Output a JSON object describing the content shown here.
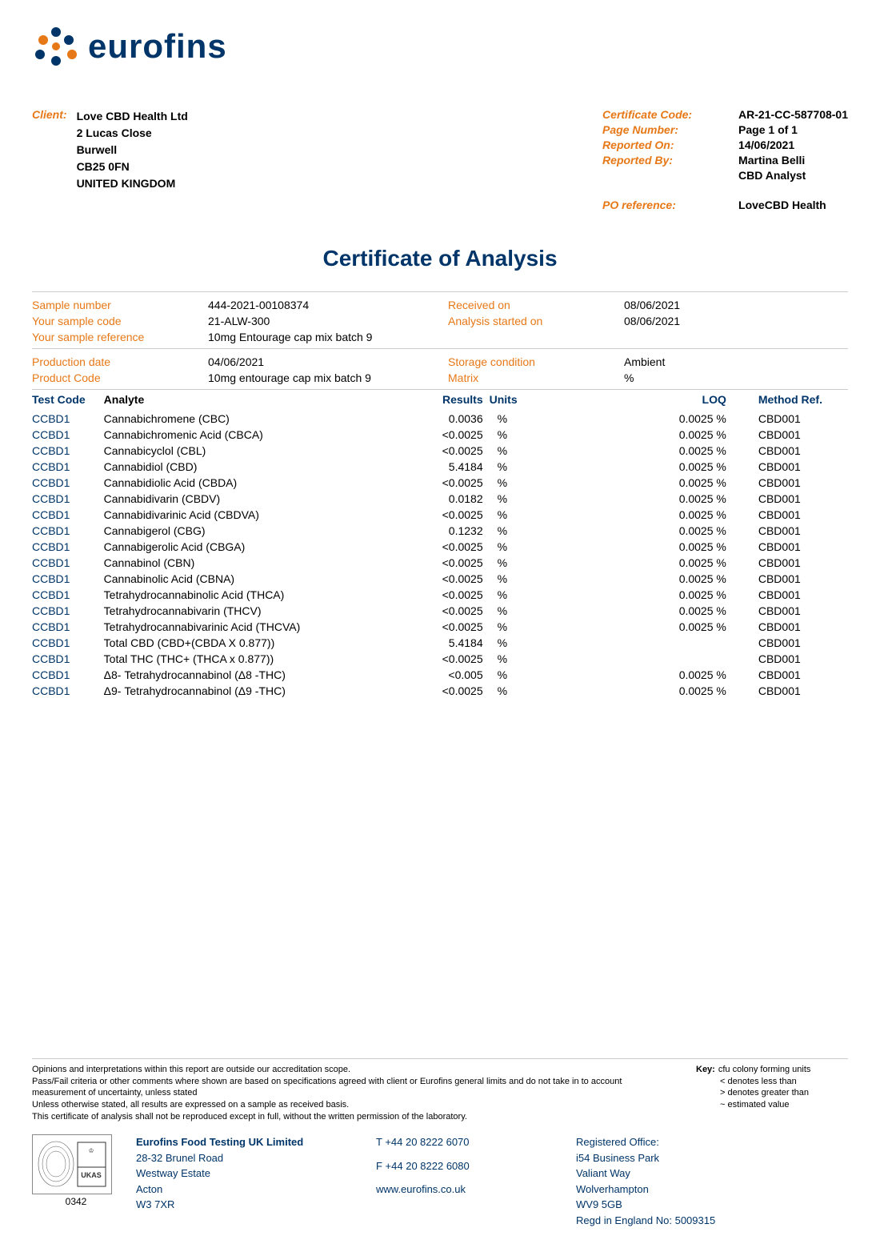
{
  "logo": {
    "text": "eurofins"
  },
  "client": {
    "label": "Client:",
    "lines": [
      "Love CBD Health Ltd",
      "2 Lucas Close",
      "Burwell",
      "CB25 0FN",
      "UNITED KINGDOM"
    ]
  },
  "cert_meta": [
    {
      "label": "Certificate Code:",
      "value": "AR-21-CC-587708-01"
    },
    {
      "label": "Page Number:",
      "value": "Page 1 of 1"
    },
    {
      "label": "Reported On:",
      "value": "14/06/2021"
    },
    {
      "label": "Reported By:",
      "value": "Martina Belli"
    },
    {
      "label": "",
      "value": "CBD Analyst"
    }
  ],
  "po_ref": {
    "label": "PO reference:",
    "value": "LoveCBD Health"
  },
  "title": "Certificate of Analysis",
  "sample_block1": {
    "left": [
      {
        "label": "Sample number",
        "value": "444-2021-00108374"
      },
      {
        "label": "Your sample code",
        "value": "21-ALW-300"
      },
      {
        "label": "Your sample reference",
        "value": "10mg Entourage cap mix batch 9"
      }
    ],
    "right": [
      {
        "label": "Received on",
        "value": "08/06/2021"
      },
      {
        "label": "Analysis started on",
        "value": "08/06/2021"
      }
    ]
  },
  "sample_block2": {
    "left": [
      {
        "label": "Production date",
        "value": "04/06/2021"
      },
      {
        "label": "Product Code",
        "value": "10mg entourage cap mix batch 9"
      }
    ],
    "right": [
      {
        "label": "Storage condition",
        "value": "Ambient"
      },
      {
        "label": "Matrix",
        "value": "%"
      }
    ]
  },
  "table": {
    "headers": {
      "code": "Test Code",
      "analyte": "Analyte",
      "results": "Results",
      "units": "Units",
      "loq": "LOQ",
      "method": "Method Ref."
    },
    "rows": [
      {
        "code": "CCBD1",
        "analyte": "Cannabichromene (CBC)",
        "results": "0.0036",
        "units": "%",
        "loq": "0.0025 %",
        "method": "CBD001"
      },
      {
        "code": "CCBD1",
        "analyte": "Cannabichromenic Acid (CBCA)",
        "results": "<0.0025",
        "units": "%",
        "loq": "0.0025 %",
        "method": "CBD001"
      },
      {
        "code": "CCBD1",
        "analyte": "Cannabicyclol (CBL)",
        "results": "<0.0025",
        "units": "%",
        "loq": "0.0025 %",
        "method": "CBD001"
      },
      {
        "code": "CCBD1",
        "analyte": "Cannabidiol (CBD)",
        "results": "5.4184",
        "units": "%",
        "loq": "0.0025 %",
        "method": "CBD001"
      },
      {
        "code": "CCBD1",
        "analyte": "Cannabidiolic Acid (CBDA)",
        "results": "<0.0025",
        "units": "%",
        "loq": "0.0025 %",
        "method": "CBD001"
      },
      {
        "code": "CCBD1",
        "analyte": "Cannabidivarin (CBDV)",
        "results": "0.0182",
        "units": "%",
        "loq": "0.0025 %",
        "method": "CBD001"
      },
      {
        "code": "CCBD1",
        "analyte": "Cannabidivarinic Acid (CBDVA)",
        "results": "<0.0025",
        "units": "%",
        "loq": "0.0025 %",
        "method": "CBD001"
      },
      {
        "code": "CCBD1",
        "analyte": "Cannabigerol (CBG)",
        "results": "0.1232",
        "units": "%",
        "loq": "0.0025 %",
        "method": "CBD001"
      },
      {
        "code": "CCBD1",
        "analyte": "Cannabigerolic Acid (CBGA)",
        "results": "<0.0025",
        "units": "%",
        "loq": "0.0025 %",
        "method": "CBD001"
      },
      {
        "code": "CCBD1",
        "analyte": "Cannabinol (CBN)",
        "results": "<0.0025",
        "units": "%",
        "loq": "0.0025 %",
        "method": "CBD001"
      },
      {
        "code": "CCBD1",
        "analyte": "Cannabinolic Acid (CBNA)",
        "results": "<0.0025",
        "units": "%",
        "loq": "0.0025 %",
        "method": "CBD001"
      },
      {
        "code": "CCBD1",
        "analyte": "Tetrahydrocannabinolic Acid (THCA)",
        "results": "<0.0025",
        "units": "%",
        "loq": "0.0025 %",
        "method": "CBD001"
      },
      {
        "code": "CCBD1",
        "analyte": "Tetrahydrocannabivarin (THCV)",
        "results": "<0.0025",
        "units": "%",
        "loq": "0.0025 %",
        "method": "CBD001"
      },
      {
        "code": "CCBD1",
        "analyte": "Tetrahydrocannabivarinic Acid (THCVA)",
        "results": "<0.0025",
        "units": "%",
        "loq": "0.0025 %",
        "method": "CBD001"
      },
      {
        "code": "CCBD1",
        "analyte": "Total CBD (CBD+(CBDA X 0.877))",
        "results": "5.4184",
        "units": "%",
        "loq": "",
        "method": "CBD001"
      },
      {
        "code": "CCBD1",
        "analyte": "Total THC (THC+ (THCA x 0.877))",
        "results": "<0.0025",
        "units": "%",
        "loq": "",
        "method": "CBD001"
      },
      {
        "code": "CCBD1",
        "analyte": "Δ8- Tetrahydrocannabinol (Δ8 -THC)",
        "results": "<0.005",
        "units": "%",
        "loq": "0.0025 %",
        "method": "CBD001"
      },
      {
        "code": "CCBD1",
        "analyte": "Δ9- Tetrahydrocannabinol (Δ9 -THC)",
        "results": "<0.0025",
        "units": "%",
        "loq": "0.0025 %",
        "method": "CBD001"
      }
    ]
  },
  "disclaimer": [
    "Opinions and interpretations within this report are outside our accreditation scope.",
    "Pass/Fail criteria or other comments where shown are based on specifications agreed with client or Eurofins general limits and do not take in to account measurement of uncertainty, unless stated",
    "Unless otherwise stated, all results are expressed on a sample as received basis.",
    "This certificate of analysis shall not be reproduced except in full, without the written permission of the laboratory."
  ],
  "key": {
    "title": "Key:",
    "items": [
      "cfu colony forming units",
      "< denotes less than",
      "> denotes greater than",
      "~ estimated value"
    ]
  },
  "accreditation": {
    "code": "0342",
    "body": "UKAS"
  },
  "company": {
    "name": "Eurofins Food Testing UK Limited",
    "addr": [
      "28-32 Brunel Road",
      "Westway Estate",
      "Acton",
      "W3 7XR"
    ]
  },
  "contact": {
    "tel": "T  +44 20 8222 6070",
    "fax": "F  +44 20 8222 6080",
    "web": "www.eurofins.co.uk"
  },
  "registered": {
    "title": "Registered Office:",
    "addr": [
      "i54 Business Park",
      "Valiant Way",
      "Wolverhampton",
      "WV9 5GB",
      "Regd in England No: 5009315"
    ]
  }
}
